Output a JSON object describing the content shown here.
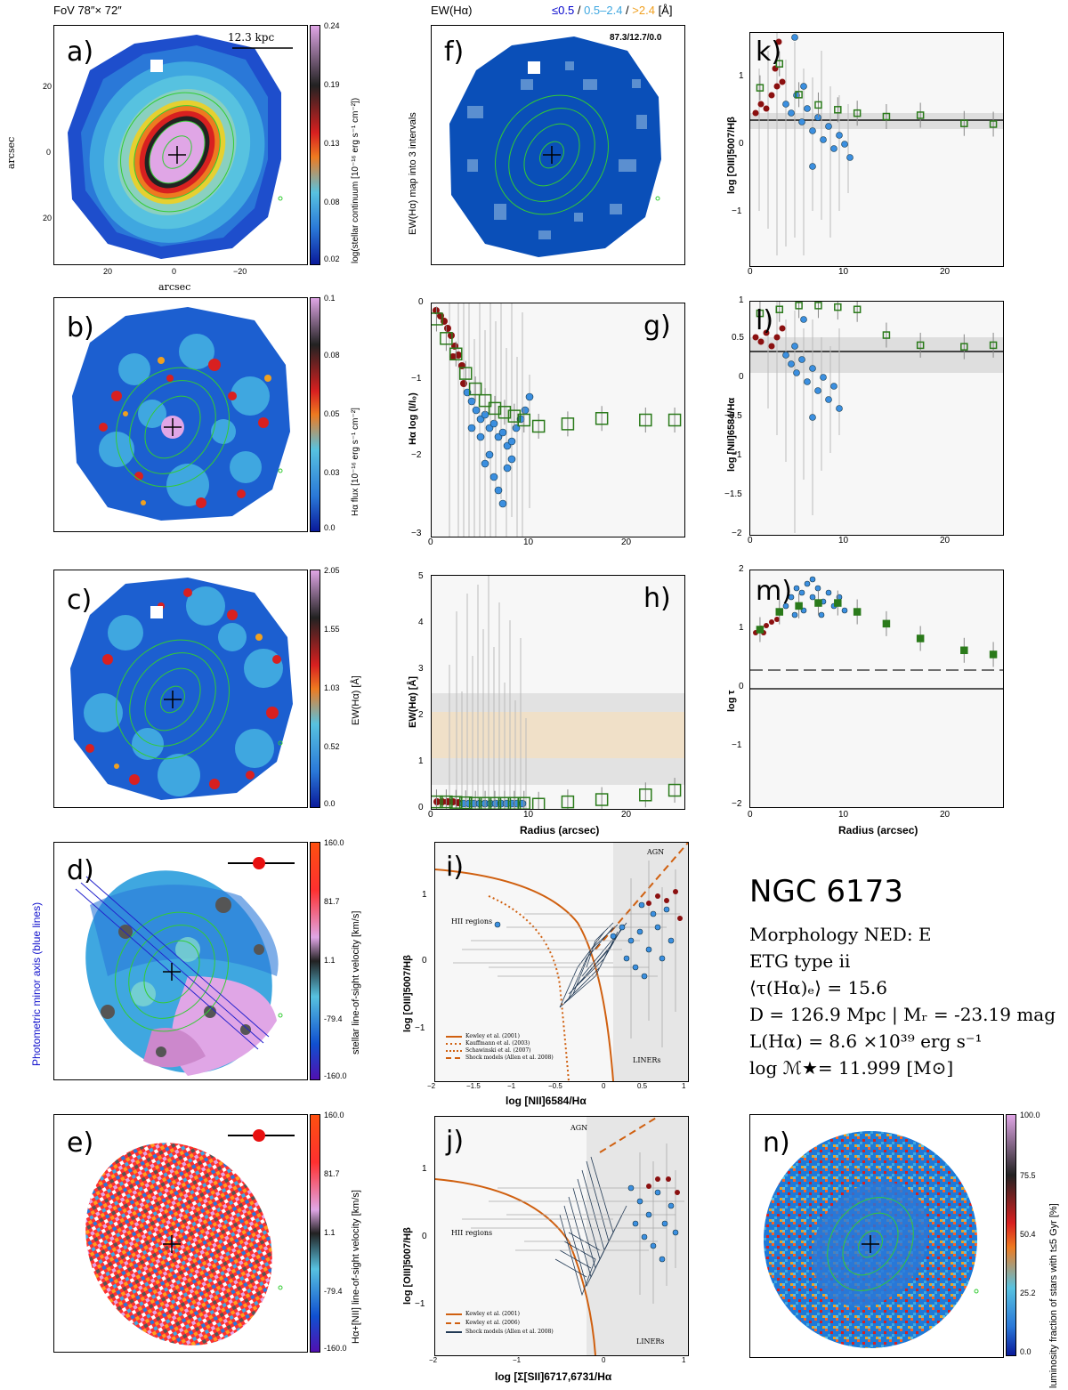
{
  "header": {
    "fov": "FoV 78″× 72″",
    "ew_title": "EW(Hα)",
    "ew_legend": [
      {
        "text": "≤0.5",
        "color": "#0000cc"
      },
      {
        "text": " / ",
        "color": "#000000"
      },
      {
        "text": "0.5–2.4",
        "color": "#3fa7e0"
      },
      {
        "text": " / ",
        "color": "#000000"
      },
      {
        "text": ">2.4",
        "color": "#f0a020"
      },
      {
        "text": " [Å]",
        "color": "#000000"
      }
    ]
  },
  "panels": {
    "a": {
      "label": "a)",
      "scale": "12.3 kpc",
      "xlabel": "arcsec",
      "ylabel": "arcsec",
      "cbar_label": "log(stellar continuum [10⁻¹⁶ erg s⁻¹ cm⁻²])",
      "cbar_ticks": [
        "0.24",
        "0.19",
        "0.13",
        "0.08",
        "0.02"
      ],
      "xticks": [
        "20",
        "0",
        "−20"
      ],
      "yticks": [
        "20",
        "0",
        "20"
      ]
    },
    "b": {
      "label": "b)",
      "cbar_label": "Hα flux [10⁻¹⁶ erg s⁻¹ cm⁻²]",
      "cbar_ticks": [
        "0.1",
        "0.08",
        "0.05",
        "0.03",
        "0.0"
      ]
    },
    "c": {
      "label": "c)",
      "cbar_label": "EW(Hα) [Å]",
      "cbar_ticks": [
        "2.05",
        "1.55",
        "1.03",
        "0.52",
        "0.0"
      ]
    },
    "d": {
      "label": "d)",
      "side_label": "Photometric minor axis (blue lines)",
      "cbar_label": "stellar line-of-sight velocity [km/s]",
      "cbar_ticks": [
        "160.0",
        "81.7",
        "1.1",
        "-79.4",
        "-160.0"
      ]
    },
    "e": {
      "label": "e)",
      "cbar_label": "Hα+[NII] line-of-sight velocity [km/s]",
      "cbar_ticks": [
        "160.0",
        "81.7",
        "1.1",
        "-79.4",
        "-160.0"
      ]
    },
    "f": {
      "label": "f)",
      "annotation": "87.3/12.7/0.0",
      "ylabel": "EW(Hα) map into 3 intervals"
    },
    "g": {
      "label": "g)",
      "ylabel": "Hα log (I/I₀)"
    },
    "h": {
      "label": "h)",
      "ylabel": "EW(Hα) [Å]",
      "xlabel": "Radius (arcsec)"
    },
    "i": {
      "label": "i)",
      "xlabel": "log [NII]6584/Hα",
      "ylabel": "log [OIII]5007/Hβ",
      "text_hii": "HII regions",
      "text_agn": "AGN",
      "text_liner": "LINERs",
      "legend": [
        "Kewley et al. (2001)",
        "Kauffmann et al. (2003)",
        "Schawinski et al. (2007)",
        "Shock models (Allen et al. 2008)"
      ]
    },
    "j": {
      "label": "j)",
      "xlabel": "log [Σ[SII]6717,6731/Hα",
      "ylabel": "log [OIII]5007/Hβ",
      "text_hii": "HII regions",
      "text_agn": "AGN",
      "text_liner": "LINERs",
      "legend": [
        "Kewley et al. (2001)",
        "Kewley et al. (2006)",
        "Shock models (Allen et al. 2008)"
      ]
    },
    "k": {
      "label": "k)",
      "ylabel": "log [OIII]5007/Hβ"
    },
    "l": {
      "label": "l)",
      "ylabel": "log [NII]6584/Hα"
    },
    "m": {
      "label": "m)",
      "ylabel": "log τ",
      "xlabel": "Radius (arcsec)"
    },
    "n": {
      "label": "n)",
      "cbar_label": "luminosity fraction of stars with t≤5 Gyr [%]",
      "cbar_ticks": [
        "100.0",
        "75.5",
        "50.4",
        "25.2",
        "0.0"
      ]
    }
  },
  "galaxy": {
    "name": "NGC 6173",
    "morphology": "Morphology NED: E",
    "etg_type": "ETG type ii",
    "tau": "⟨τ(Hα)ₑ⟩ = 15.6",
    "distance": "D = 126.9 Mpc | Mᵣ = -23.19 mag",
    "lum": "L(Hα) = 8.6 ×10³⁹ erg s⁻¹",
    "mass": "log ℳ★= 11.999 [M⊙]"
  },
  "chart_data": [
    {
      "type": "scatter",
      "panel": "g",
      "xlabel": "",
      "ylabel": "Hα log (I/I₀)",
      "xlim": [
        0,
        26
      ],
      "ylim": [
        -3,
        0
      ],
      "xticks": [
        "0",
        "10",
        "20"
      ],
      "yticks": [
        "0",
        "−1",
        "−2",
        "−3"
      ],
      "series": [
        {
          "name": "binned",
          "x": [
            0.5,
            1.5,
            2.5,
            3.5,
            4.5,
            5.5,
            6.5,
            7.5,
            8.5,
            9.5,
            11,
            14,
            17.5,
            22,
            25
          ],
          "y": [
            -0.2,
            -0.45,
            -0.65,
            -0.9,
            -1.1,
            -1.25,
            -1.35,
            -1.4,
            -1.45,
            -1.5,
            -1.58,
            -1.55,
            -1.48,
            -1.5,
            -1.5
          ]
        }
      ]
    },
    {
      "type": "scatter",
      "panel": "h",
      "xlabel": "Radius (arcsec)",
      "ylabel": "EW(Hα) [Å]",
      "xlim": [
        0,
        26
      ],
      "ylim": [
        0,
        5
      ],
      "xticks": [
        "0",
        "10",
        "20"
      ],
      "yticks": [
        "0",
        "1",
        "2",
        "3",
        "4",
        "5"
      ],
      "series": [
        {
          "name": "binned",
          "x": [
            0.5,
            1.5,
            2.5,
            3.5,
            4.5,
            5.5,
            6.5,
            7.5,
            8.5,
            9.5,
            11,
            14,
            17.5,
            22,
            25
          ],
          "y": [
            0.15,
            0.15,
            0.14,
            0.13,
            0.12,
            0.12,
            0.12,
            0.12,
            0.12,
            0.12,
            0.1,
            0.15,
            0.2,
            0.3,
            0.4
          ]
        }
      ]
    },
    {
      "type": "scatter",
      "panel": "k",
      "xlabel": "",
      "ylabel": "log [OIII]5007/Hβ",
      "xlim": [
        0,
        26
      ],
      "ylim": [
        -1.9,
        1.5
      ],
      "xticks": [
        "0",
        "10",
        "20"
      ],
      "yticks": [
        "1",
        "0",
        "−1"
      ],
      "series": [
        {
          "name": "binned",
          "x": [
            1,
            3,
            5,
            7,
            9,
            11,
            14,
            17.5,
            22,
            25
          ],
          "y": [
            0.7,
            1.05,
            0.6,
            0.45,
            0.38,
            0.33,
            0.28,
            0.3,
            0.18,
            0.17
          ]
        }
      ]
    },
    {
      "type": "scatter",
      "panel": "l",
      "xlabel": "",
      "ylabel": "log [NII]6584/Hα",
      "xlim": [
        0,
        26
      ],
      "ylim": [
        -2,
        1
      ],
      "xticks": [
        "0",
        "10",
        "20"
      ],
      "yticks": [
        "1",
        "0.5",
        "0",
        "−0.5",
        "−1",
        "−1.5",
        "−2"
      ],
      "series": [
        {
          "name": "binned",
          "x": [
            1,
            3,
            5,
            7,
            9,
            11,
            14,
            17.5,
            22,
            25
          ],
          "y": [
            0.85,
            0.9,
            0.95,
            0.95,
            0.93,
            0.9,
            0.57,
            0.44,
            0.42,
            0.44
          ]
        }
      ]
    },
    {
      "type": "scatter",
      "panel": "m",
      "xlabel": "Radius (arcsec)",
      "ylabel": "log τ",
      "xlim": [
        0,
        26
      ],
      "ylim": [
        -2,
        2
      ],
      "xticks": [
        "0",
        "10",
        "20"
      ],
      "yticks": [
        "2",
        "1",
        "0",
        "−1",
        "−2"
      ],
      "series": [
        {
          "name": "binned",
          "x": [
            1,
            3,
            5,
            7,
            9,
            11,
            14,
            17.5,
            22,
            25
          ],
          "y": [
            1.0,
            1.3,
            1.4,
            1.45,
            1.45,
            1.3,
            1.1,
            0.85,
            0.65,
            0.58
          ]
        }
      ]
    },
    {
      "type": "scatter",
      "panel": "i",
      "xlabel": "log [NII]6584/Hα",
      "ylabel": "log [OIII]5007/Hβ",
      "xlim": [
        -2,
        1
      ],
      "ylim": [
        -1.8,
        1.6
      ],
      "xticks": [
        "−2",
        "−1.5",
        "−1",
        "−0.5",
        "0",
        "0.5",
        "1"
      ],
      "yticks": [
        "1",
        "0",
        "−1"
      ]
    },
    {
      "type": "scatter",
      "panel": "j",
      "xlabel": "log [Σ[SII]6717,6731/Hα",
      "ylabel": "log [OIII]5007/Hβ",
      "xlim": [
        -2,
        1
      ],
      "ylim": [
        -1.8,
        1.6
      ],
      "xticks": [
        "−2",
        "−1",
        "0",
        "1"
      ],
      "yticks": [
        "1",
        "0",
        "−1"
      ]
    }
  ]
}
